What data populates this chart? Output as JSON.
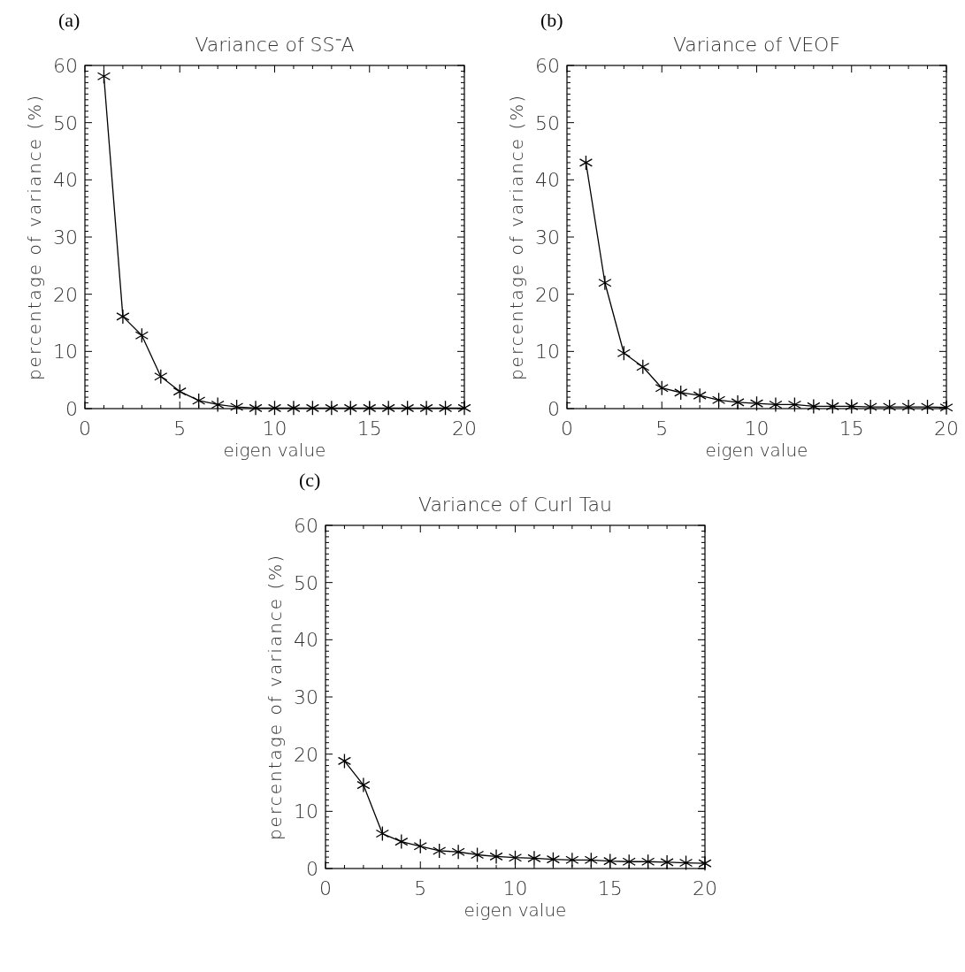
{
  "chart_data": [
    {
      "type": "line",
      "annotations": [
        "(a)"
      ],
      "title": "Variance of SS⁻A",
      "xlabel": "eigen value",
      "ylabel": "percentage of variance (%)",
      "xlim": [
        0,
        20
      ],
      "xticks": [
        0,
        5,
        10,
        15,
        20
      ],
      "ylim": [
        0,
        60
      ],
      "yticks": [
        0,
        10,
        20,
        30,
        40,
        50,
        60
      ],
      "marker": "cross",
      "color": "#000000",
      "x": [
        1,
        2,
        3,
        4,
        5,
        6,
        7,
        8,
        9,
        10,
        11,
        12,
        13,
        14,
        15,
        16,
        17,
        18,
        19,
        20
      ],
      "values": [
        58.1,
        16.1,
        12.8,
        5.6,
        3.0,
        1.4,
        0.7,
        0.3,
        0.1,
        0.1,
        0.1,
        0.1,
        0.1,
        0.1,
        0.1,
        0.1,
        0.1,
        0.1,
        0.1,
        0.1
      ]
    },
    {
      "type": "line",
      "annotations": [
        "(b)"
      ],
      "title": "Variance of VEOF",
      "xlabel": "eigen value",
      "ylabel": "percentage of variance (%)",
      "xlim": [
        0,
        20
      ],
      "xticks": [
        0,
        5,
        10,
        15,
        20
      ],
      "ylim": [
        0,
        60
      ],
      "yticks": [
        0,
        10,
        20,
        30,
        40,
        50,
        60
      ],
      "marker": "cross",
      "color": "#000000",
      "x": [
        1,
        2,
        3,
        4,
        5,
        6,
        7,
        8,
        9,
        10,
        11,
        12,
        13,
        14,
        15,
        16,
        17,
        18,
        19,
        20
      ],
      "values": [
        43.0,
        22.0,
        9.7,
        7.3,
        3.6,
        2.8,
        2.3,
        1.5,
        1.1,
        0.9,
        0.7,
        0.7,
        0.4,
        0.4,
        0.4,
        0.3,
        0.3,
        0.3,
        0.3,
        0.2
      ]
    },
    {
      "type": "line",
      "annotations": [
        "(c)"
      ],
      "title": "Variance of Curl Tau",
      "xlabel": "eigen value",
      "ylabel": "percentage of variance (%)",
      "xlim": [
        0,
        20
      ],
      "xticks": [
        0,
        5,
        10,
        15,
        20
      ],
      "ylim": [
        0,
        60
      ],
      "yticks": [
        0,
        10,
        20,
        30,
        40,
        50,
        60
      ],
      "marker": "cross",
      "color": "#000000",
      "x": [
        1,
        2,
        3,
        4,
        5,
        6,
        7,
        8,
        9,
        10,
        11,
        12,
        13,
        14,
        15,
        16,
        17,
        18,
        19,
        20
      ],
      "values": [
        18.8,
        14.6,
        6.1,
        4.7,
        3.9,
        3.1,
        2.9,
        2.4,
        2.1,
        1.9,
        1.8,
        1.6,
        1.5,
        1.5,
        1.3,
        1.2,
        1.2,
        1.1,
        1.0,
        0.9
      ]
    }
  ]
}
